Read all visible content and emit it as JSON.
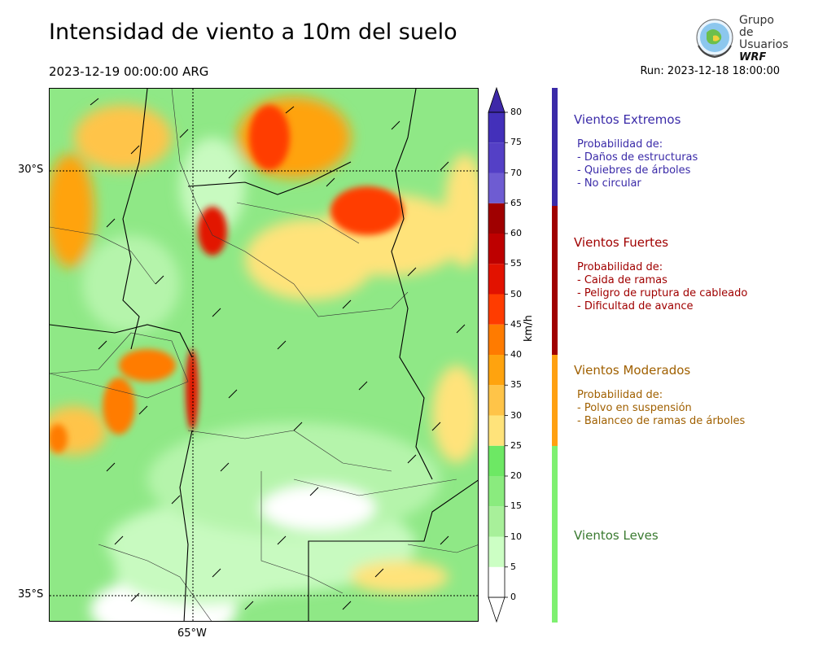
{
  "header": {
    "title": "Intensidad de viento a 10m del suelo",
    "valid_time": "2023-12-19 00:00:00 ARG",
    "run": "Run: 2023-12-18 18:00:00"
  },
  "logo": {
    "line1": "Grupo de",
    "line2": "Usuarios",
    "line3": "WRF"
  },
  "map": {
    "lat_labels": [
      "30°S",
      "35°S"
    ],
    "lon_labels": [
      "65°W"
    ]
  },
  "colorbar": {
    "unit": "km/h",
    "ticks": [
      "0",
      "5",
      "10",
      "15",
      "20",
      "25",
      "30",
      "35",
      "40",
      "45",
      "50",
      "55",
      "60",
      "65",
      "70",
      "75",
      "80"
    ],
    "colors": [
      "#ffffff",
      "#ccffc4",
      "#a8f09a",
      "#8aeb7e",
      "#6de864",
      "#ffe37a",
      "#ffc448",
      "#ffa30e",
      "#ff7b00",
      "#ff3c00",
      "#e21200",
      "#be0000",
      "#a00000",
      "#6e5cd2",
      "#5440c6",
      "#4330ba"
    ],
    "top_color": "#3e28a8"
  },
  "legend": [
    {
      "title": "Vientos Extremos",
      "color": "#3a2aa8",
      "lines": [
        "Probabilidad de:",
        "- Daños de estructuras",
        "- Quiebres de árboles",
        "- No circular"
      ]
    },
    {
      "title": "Vientos Fuertes",
      "color": "#a00000",
      "lines": [
        "Probabilidad de:",
        "- Caida de ramas",
        "- Peligro de ruptura de cableado",
        "- Dificultad de avance"
      ]
    },
    {
      "title": "Vientos Moderados",
      "color": "#a06000",
      "lines": [
        "Probabilidad de:",
        "- Polvo en suspensión",
        "- Balanceo de ramas de árboles"
      ]
    },
    {
      "title": "Vientos Leves",
      "color": "#3a7a30",
      "lines": []
    }
  ],
  "legend_bar_colors": [
    "#3a2aa8",
    "#a00000",
    "#ffa010",
    "#7ef070"
  ]
}
